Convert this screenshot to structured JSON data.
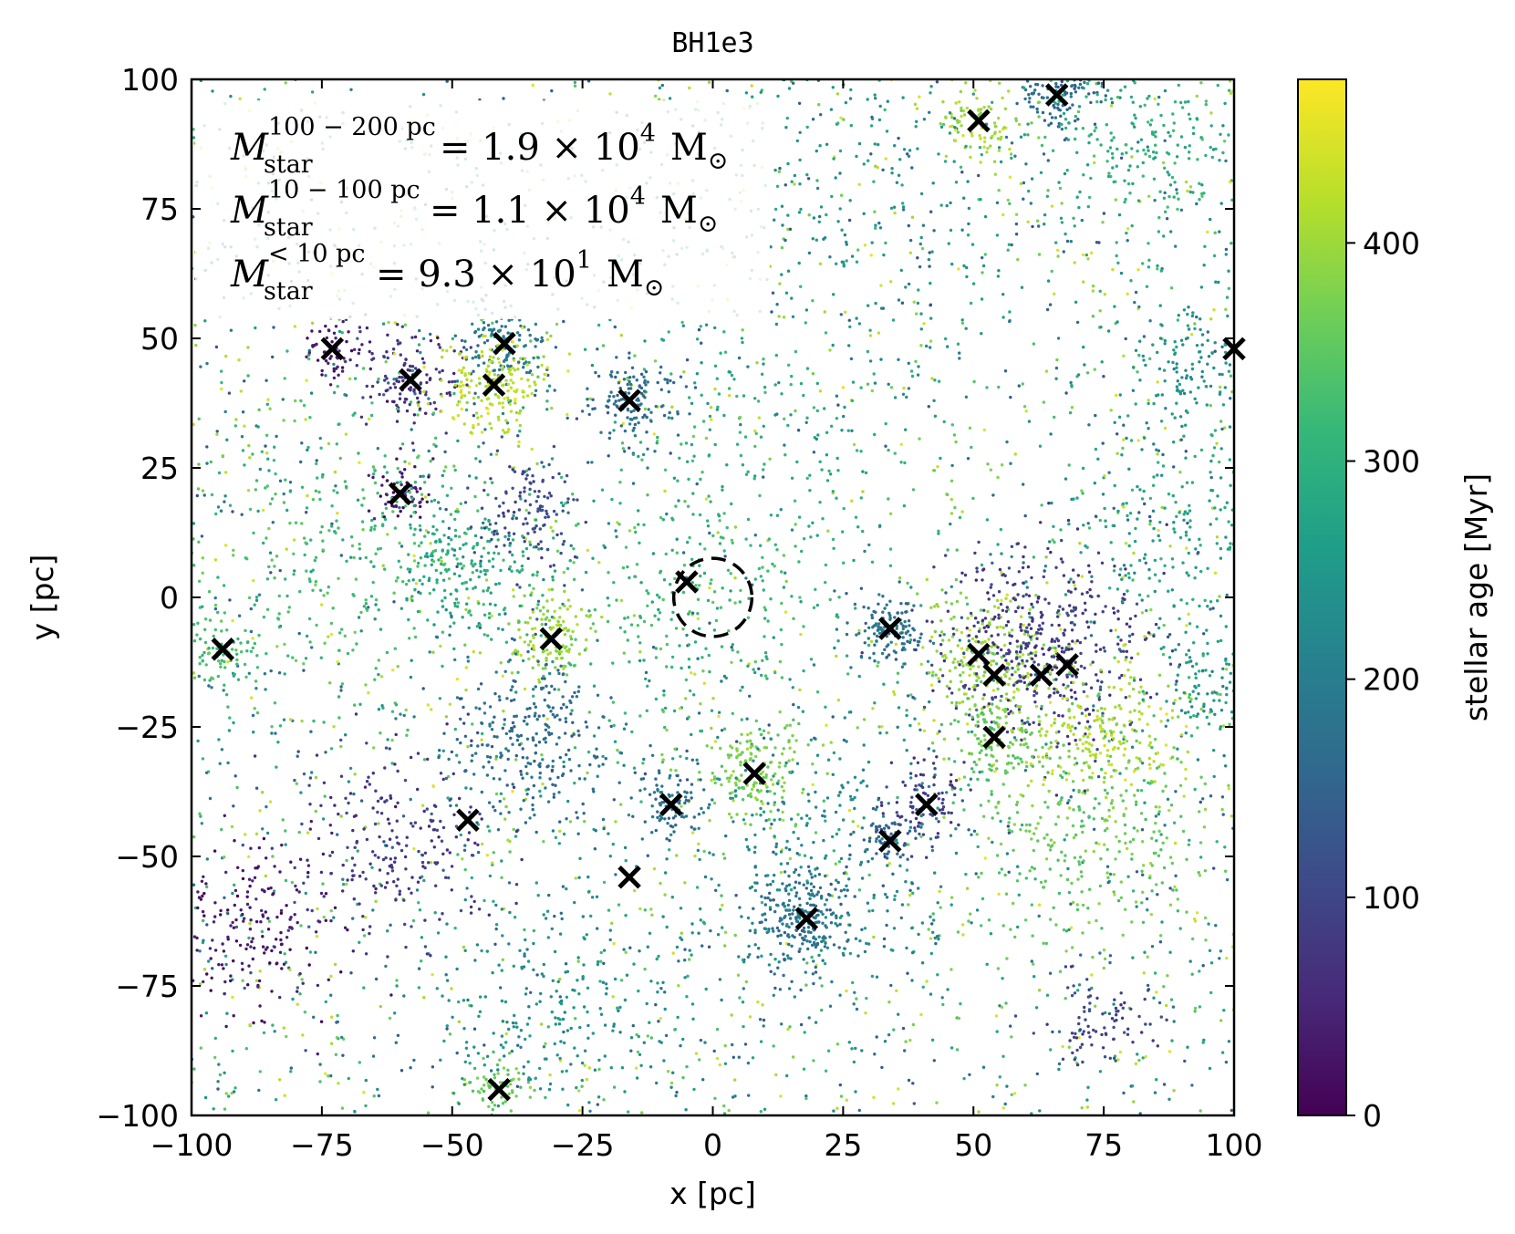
{
  "chart_data": {
    "type": "scatter",
    "title": "BH1e3",
    "xlabel": "x [pc]",
    "ylabel": "y [pc]",
    "xlim": [
      -100,
      100
    ],
    "ylim": [
      -100,
      100
    ],
    "xticks": [
      -100,
      -75,
      -50,
      -25,
      0,
      25,
      50,
      75,
      100
    ],
    "yticks": [
      -100,
      -75,
      -50,
      -25,
      0,
      25,
      50,
      75,
      100
    ],
    "xtick_labels": [
      "−100",
      "−75",
      "−50",
      "−25",
      "0",
      "25",
      "50",
      "75",
      "100"
    ],
    "ytick_labels": [
      "−100",
      "−75",
      "−50",
      "−25",
      "0",
      "25",
      "50",
      "75",
      "100"
    ],
    "colorbar": {
      "label": "stellar age [Myr]",
      "range": [
        0,
        475
      ],
      "ticks": [
        0,
        100,
        200,
        300,
        400
      ],
      "tick_labels": [
        "0",
        "100",
        "200",
        "300",
        "400"
      ],
      "colormap": [
        "#440154",
        "#482878",
        "#3e4989",
        "#31688e",
        "#26828e",
        "#1f9e89",
        "#35b779",
        "#6ece58",
        "#b5de2b",
        "#fde725"
      ]
    },
    "annotations": [
      {
        "name": "mass-outer",
        "quantity": "M",
        "sub": "star",
        "sup": "100 − 200 pc",
        "value": "= 1.9 × 10",
        "exp": "4",
        "unit": "M",
        "unit_sub": "⊙"
      },
      {
        "name": "mass-mid",
        "quantity": "M",
        "sub": "star",
        "sup": "10 − 100 pc",
        "value": "= 1.1 × 10",
        "exp": "4",
        "unit": "M",
        "unit_sub": "⊙"
      },
      {
        "name": "mass-inner",
        "quantity": "M",
        "sub": "star",
        "sup": "< 10 pc",
        "value": "= 9.3 × 10",
        "exp": "1",
        "unit": "M",
        "unit_sub": "⊙"
      }
    ],
    "central_circle": {
      "x": 0,
      "y": 0,
      "radius": 7.5,
      "style": "dashed"
    },
    "cluster_markers": [
      {
        "x": 66,
        "y": 97,
        "age": 160
      },
      {
        "x": 51,
        "y": 92,
        "age": 410
      },
      {
        "x": -73,
        "y": 48,
        "age": 40
      },
      {
        "x": -40,
        "y": 49,
        "age": 190
      },
      {
        "x": -58,
        "y": 42,
        "age": 70
      },
      {
        "x": -42,
        "y": 41,
        "age": 430
      },
      {
        "x": -16,
        "y": 38,
        "age": 170
      },
      {
        "x": 100,
        "y": 48,
        "age": 420
      },
      {
        "x": -60,
        "y": 20,
        "age": 30
      },
      {
        "x": -5,
        "y": 3,
        "age": 320
      },
      {
        "x": 34,
        "y": -6,
        "age": 180
      },
      {
        "x": -94,
        "y": -10,
        "age": 330
      },
      {
        "x": -31,
        "y": -8,
        "age": 400
      },
      {
        "x": 51,
        "y": -11,
        "age": 400
      },
      {
        "x": 54,
        "y": -15,
        "age": 380
      },
      {
        "x": 63,
        "y": -15,
        "age": 80
      },
      {
        "x": 68,
        "y": -13,
        "age": 70
      },
      {
        "x": 54,
        "y": -27,
        "age": 360
      },
      {
        "x": 8,
        "y": -34,
        "age": 380
      },
      {
        "x": -8,
        "y": -40,
        "age": 170
      },
      {
        "x": 41,
        "y": -40,
        "age": 90
      },
      {
        "x": -47,
        "y": -43,
        "age": 90
      },
      {
        "x": 34,
        "y": -47,
        "age": 150
      },
      {
        "x": -16,
        "y": -54,
        "age": 80
      },
      {
        "x": 18,
        "y": -62,
        "age": 180
      },
      {
        "x": -41,
        "y": -95,
        "age": 360
      }
    ],
    "star_clumps": [
      {
        "x": 66,
        "y": 97,
        "r": 4,
        "n": 120,
        "age": 160
      },
      {
        "x": 51,
        "y": 92,
        "r": 4,
        "n": 90,
        "age": 410
      },
      {
        "x": -73,
        "y": 48,
        "r": 3,
        "n": 60,
        "age": 40
      },
      {
        "x": -40,
        "y": 49,
        "r": 4,
        "n": 120,
        "age": 190
      },
      {
        "x": -58,
        "y": 42,
        "r": 5,
        "n": 130,
        "age": 70
      },
      {
        "x": -42,
        "y": 41,
        "r": 5,
        "n": 180,
        "age": 430
      },
      {
        "x": -16,
        "y": 38,
        "r": 4,
        "n": 130,
        "age": 170
      },
      {
        "x": -60,
        "y": 20,
        "r": 3,
        "n": 60,
        "age": 30
      },
      {
        "x": 34,
        "y": -6,
        "r": 3,
        "n": 120,
        "age": 180
      },
      {
        "x": -94,
        "y": -10,
        "r": 4,
        "n": 80,
        "age": 330
      },
      {
        "x": -31,
        "y": -8,
        "r": 4,
        "n": 120,
        "age": 400
      },
      {
        "x": 52,
        "y": -12,
        "r": 6,
        "n": 220,
        "age": 400
      },
      {
        "x": 64,
        "y": -8,
        "r": 10,
        "n": 450,
        "age": 85
      },
      {
        "x": 54,
        "y": -27,
        "r": 4,
        "n": 100,
        "age": 360
      },
      {
        "x": 8,
        "y": -34,
        "r": 5,
        "n": 150,
        "age": 380
      },
      {
        "x": -8,
        "y": -40,
        "r": 3,
        "n": 80,
        "age": 170
      },
      {
        "x": 41,
        "y": -40,
        "r": 4,
        "n": 90,
        "age": 90
      },
      {
        "x": 34,
        "y": -47,
        "r": 3,
        "n": 70,
        "age": 150
      },
      {
        "x": 18,
        "y": -62,
        "r": 5,
        "n": 220,
        "age": 180
      },
      {
        "x": -41,
        "y": -95,
        "r": 3,
        "n": 60,
        "age": 360
      },
      {
        "x": -48,
        "y": 6,
        "r": 7,
        "n": 200,
        "age": 290
      },
      {
        "x": -36,
        "y": 17,
        "r": 5,
        "n": 120,
        "age": 110
      },
      {
        "x": -35,
        "y": -27,
        "r": 8,
        "n": 260,
        "age": 170
      },
      {
        "x": 75,
        "y": -27,
        "r": 8,
        "n": 220,
        "age": 420
      },
      {
        "x": 72,
        "y": -45,
        "r": 12,
        "n": 320,
        "age": 360
      },
      {
        "x": -88,
        "y": -63,
        "r": 9,
        "n": 200,
        "age": 30
      },
      {
        "x": 95,
        "y": -18,
        "r": 5,
        "n": 90,
        "age": 250
      },
      {
        "x": 93,
        "y": 45,
        "r": 8,
        "n": 160,
        "age": 240
      },
      {
        "x": 84,
        "y": 90,
        "r": 12,
        "n": 260,
        "age": 300
      },
      {
        "x": -70,
        "y": 10,
        "r": 14,
        "n": 260,
        "age": 330
      },
      {
        "x": -5,
        "y": 0,
        "r": 12,
        "n": 220,
        "age": 320
      },
      {
        "x": 20,
        "y": -50,
        "r": 14,
        "n": 260,
        "age": 230
      },
      {
        "x": -60,
        "y": -48,
        "r": 10,
        "n": 220,
        "age": 80
      },
      {
        "x": 75,
        "y": -83,
        "r": 5,
        "n": 80,
        "age": 100
      },
      {
        "x": -30,
        "y": -80,
        "r": 12,
        "n": 220,
        "age": 240
      },
      {
        "x": 12,
        "y": 25,
        "r": 15,
        "n": 150,
        "age": 300
      },
      {
        "x": 30,
        "y": 78,
        "r": 20,
        "n": 220,
        "age": 250
      },
      {
        "x": 88,
        "y": 10,
        "r": 12,
        "n": 180,
        "age": 280
      }
    ]
  }
}
